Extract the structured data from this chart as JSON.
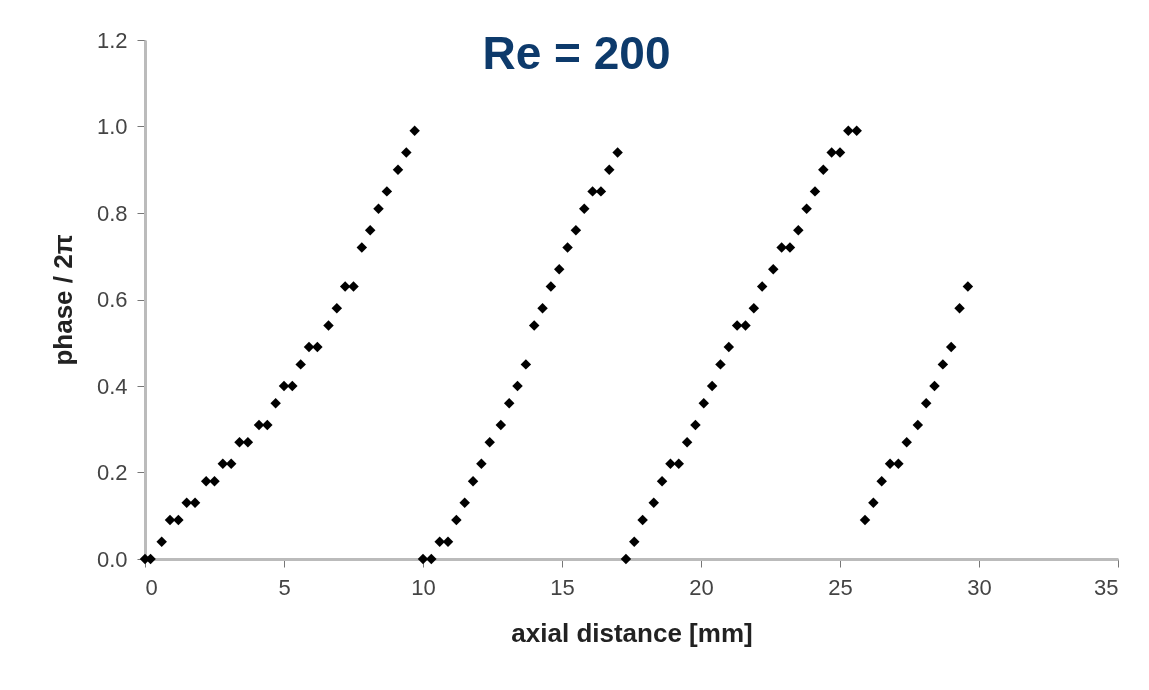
{
  "chart_data": {
    "type": "scatter",
    "title": "Re = 200",
    "xlabel": "axial distance [mm]",
    "ylabel": "phase / 2π",
    "series": [
      {
        "color": "#000000",
        "x": [
          0.0,
          0.2,
          0.6,
          0.9,
          1.2,
          1.5,
          1.8,
          2.2,
          2.5,
          2.8,
          3.1,
          3.4,
          3.7,
          4.1,
          4.4,
          4.7,
          5.0,
          5.3,
          5.6,
          5.9,
          6.2,
          6.6,
          6.9,
          7.2,
          7.5,
          7.8,
          8.1,
          8.4,
          8.7,
          9.1,
          9.4,
          9.7,
          10.0,
          10.3,
          10.6,
          10.9,
          11.2,
          11.5,
          11.8,
          12.1,
          12.4,
          12.8,
          13.1,
          13.4,
          13.7,
          14.0,
          14.3,
          14.6,
          14.9,
          15.2,
          15.5,
          15.8,
          16.1,
          16.4,
          16.7,
          17.0,
          17.3,
          17.6,
          17.9,
          18.3,
          18.6,
          18.9,
          19.2,
          19.5,
          19.8,
          20.1,
          20.4,
          20.7,
          21.0,
          21.3,
          21.6,
          21.9,
          22.2,
          22.6,
          22.9,
          23.2,
          23.5,
          23.8,
          24.1,
          24.4,
          24.7,
          25.0,
          25.3,
          25.6,
          25.9,
          26.2,
          26.5,
          26.8,
          27.1,
          27.4,
          27.8,
          28.1,
          28.4,
          28.7,
          29.0,
          29.3,
          29.6
        ],
        "values": [
          0,
          0,
          0.04,
          0.09,
          0.09,
          0.13,
          0.13,
          0.18,
          0.18,
          0.22,
          0.22,
          0.27,
          0.27,
          0.31,
          0.31,
          0.36,
          0.4,
          0.4,
          0.45,
          0.49,
          0.49,
          0.54,
          0.58,
          0.63,
          0.63,
          0.72,
          0.76,
          0.81,
          0.85,
          0.9,
          0.94,
          0.99,
          0,
          0,
          0.04,
          0.04,
          0.09,
          0.13,
          0.18,
          0.22,
          0.27,
          0.31,
          0.36,
          0.4,
          0.45,
          0.54,
          0.58,
          0.63,
          0.67,
          0.72,
          0.76,
          0.81,
          0.85,
          0.85,
          0.9,
          0.94,
          0,
          0.04,
          0.09,
          0.13,
          0.18,
          0.22,
          0.22,
          0.27,
          0.31,
          0.36,
          0.4,
          0.45,
          0.49,
          0.54,
          0.54,
          0.58,
          0.63,
          0.67,
          0.72,
          0.72,
          0.76,
          0.81,
          0.85,
          0.9,
          0.94,
          0.94,
          0.99,
          0.99,
          0.09,
          0.13,
          0.18,
          0.22,
          0.22,
          0.27,
          0.31,
          0.36,
          0.4,
          0.45,
          0.49,
          0.58,
          0.63
        ]
      }
    ],
    "xlim": [
      0,
      35
    ],
    "xticks": [
      0,
      5,
      10,
      15,
      20,
      25,
      30,
      35
    ],
    "ylim": [
      0,
      1.2
    ],
    "yticks": [
      {
        "value": 0,
        "label": "0.0"
      },
      {
        "value": 0.2,
        "label": "0.2"
      },
      {
        "value": 0.4,
        "label": "0.4"
      },
      {
        "value": 0.6,
        "label": "0.6"
      },
      {
        "value": 0.8,
        "label": "0.8"
      },
      {
        "value": 1,
        "label": "1.0"
      },
      {
        "value": 1.2,
        "label": "1.2"
      }
    ],
    "marker": "diamond",
    "legend": false,
    "grid": false
  }
}
